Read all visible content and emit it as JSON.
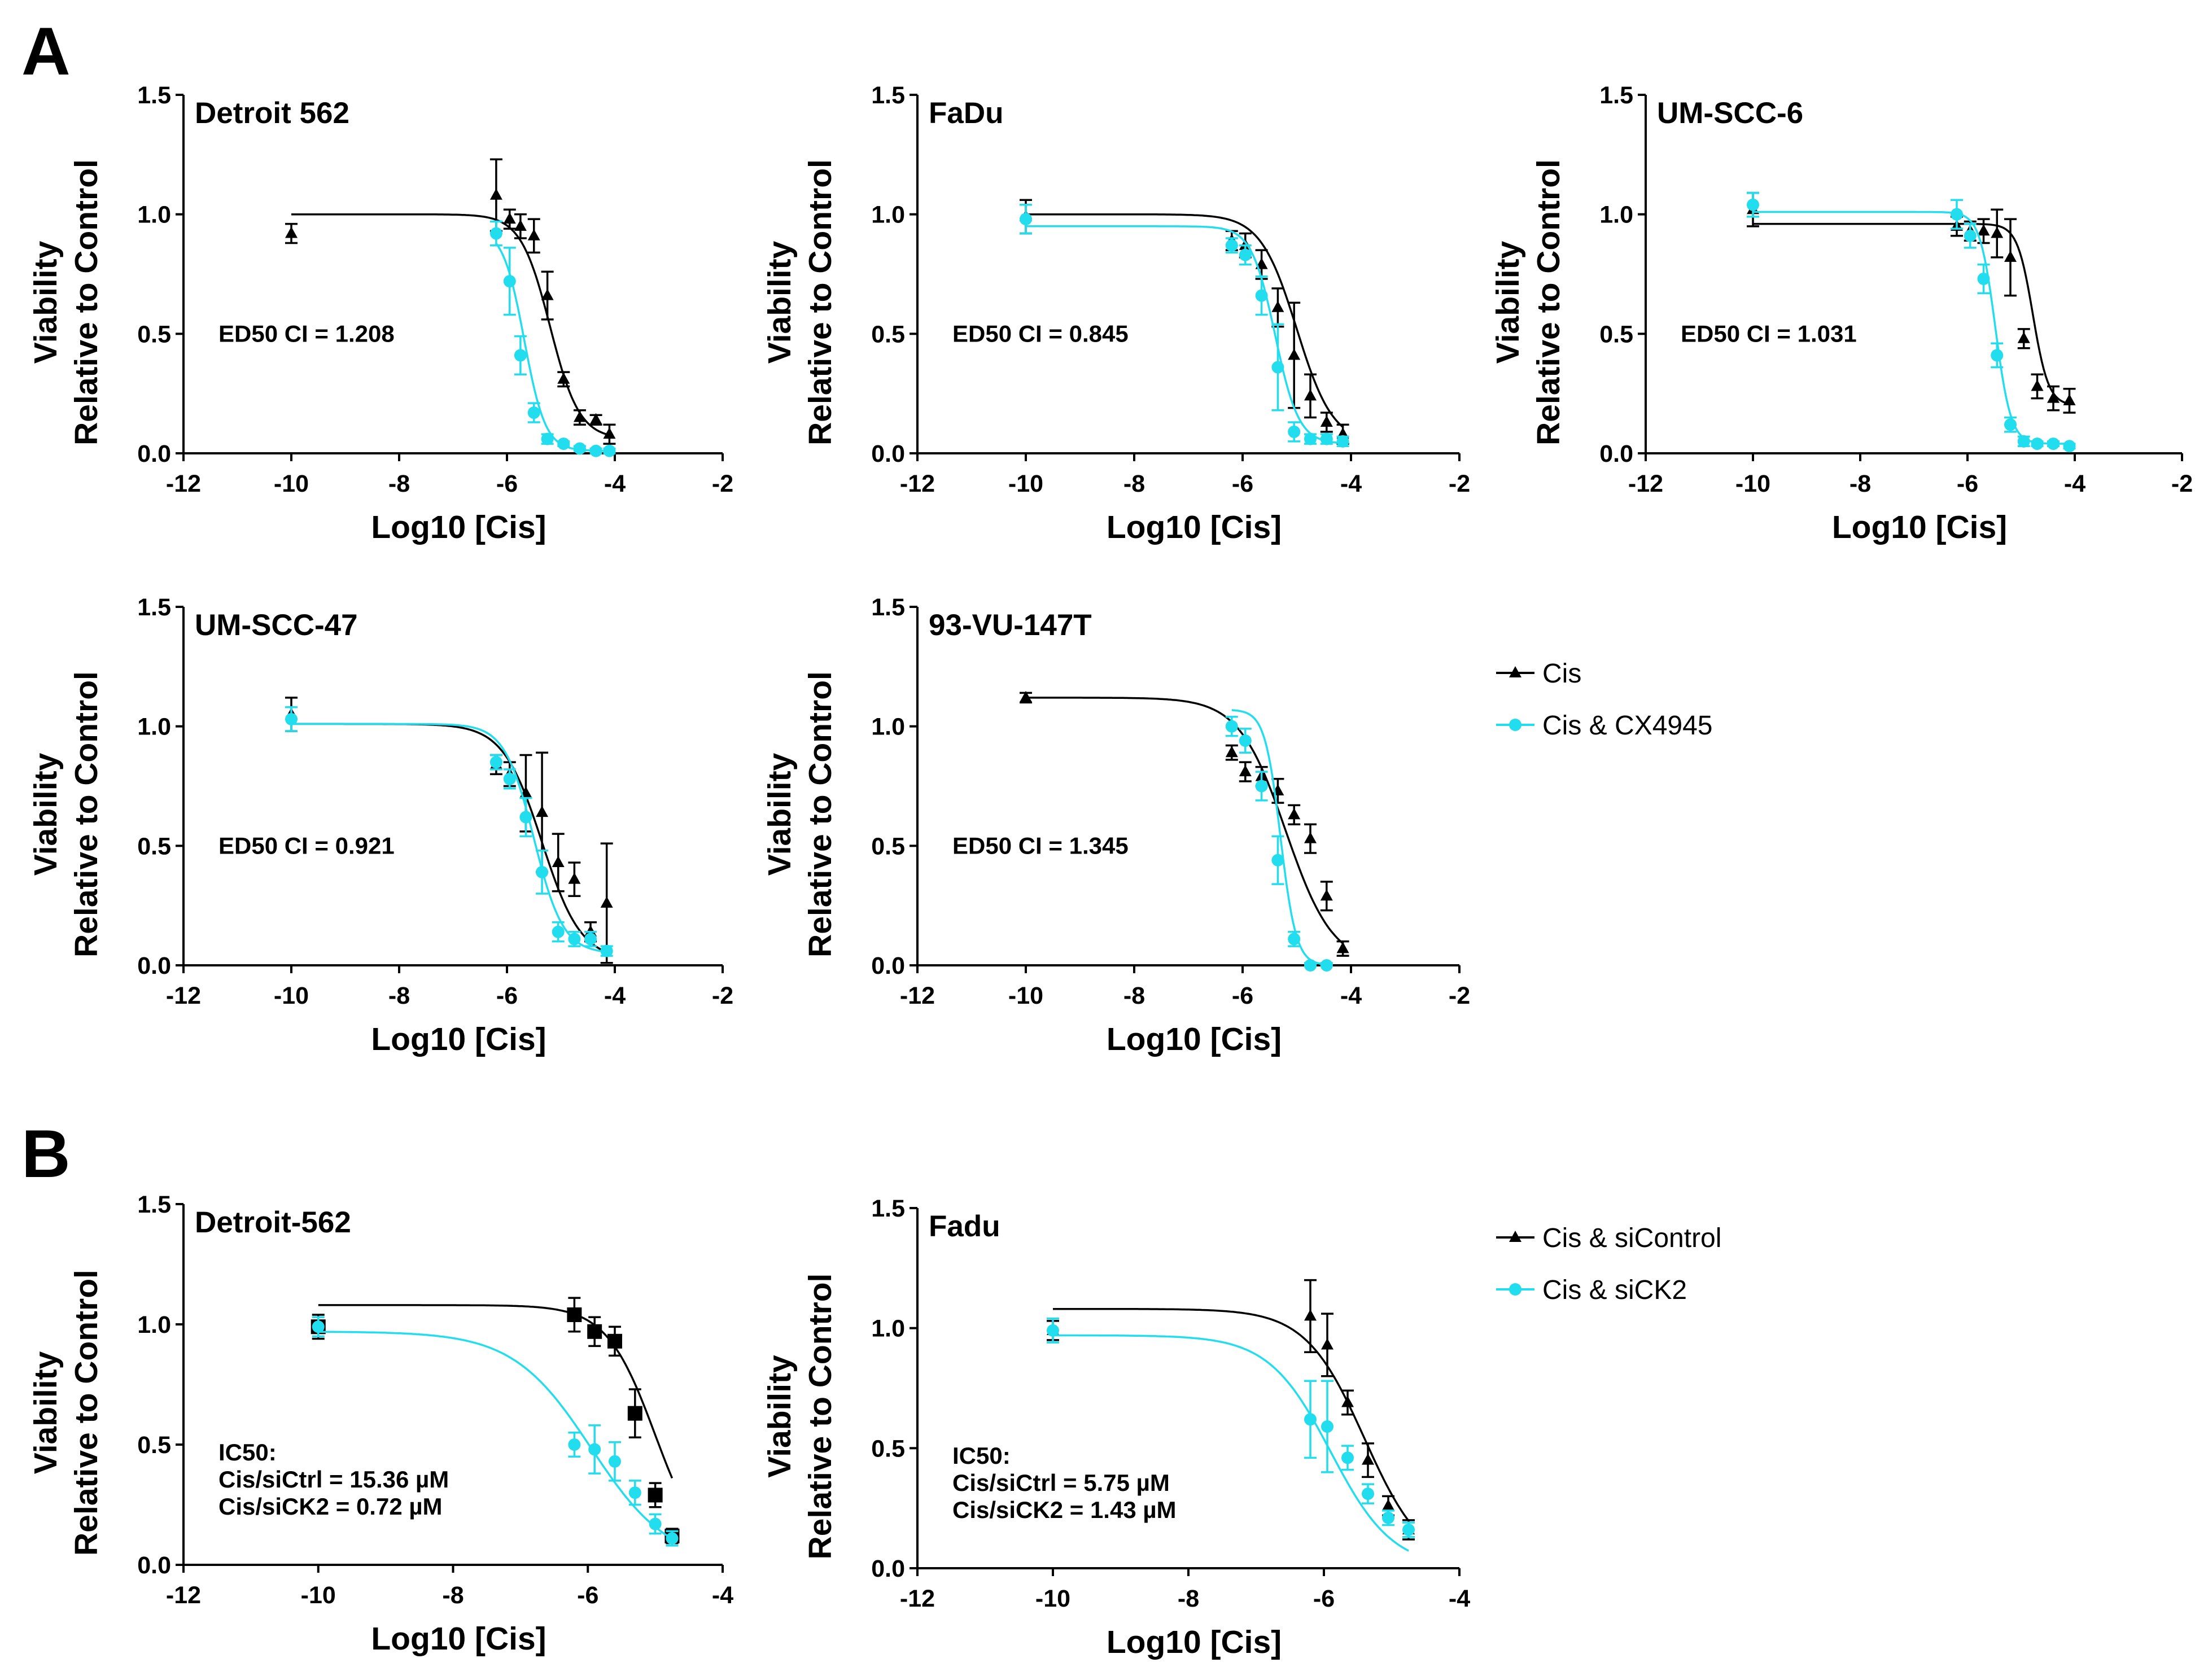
{
  "panel_letters": [
    "A",
    "B"
  ],
  "colors": {
    "cis": "#000000",
    "combo": "#22DDEE"
  },
  "chart_data": [
    {
      "type": "line",
      "panel": "A",
      "title": "Detroit 562",
      "xlabel": "Log10 [Cis]",
      "ylabel": [
        "Viability",
        "Relative to Control"
      ],
      "xlim": [
        -12,
        -2
      ],
      "ylim": [
        0,
        1.5
      ],
      "xticks": [
        -12,
        -10,
        -8,
        -6,
        -4,
        -2
      ],
      "yticks": [
        0.0,
        0.5,
        1.0,
        1.5
      ],
      "annotation": [
        "ED50 CI = 1.208"
      ],
      "series": [
        {
          "name": "Cis",
          "marker": "triangle",
          "color": "#000000",
          "fit": {
            "top": 1.0,
            "bottom": 0.06,
            "logec50": -5.2,
            "hill": 1.6
          },
          "x": [
            -10,
            -6.2,
            -5.95,
            -5.75,
            -5.5,
            -5.25,
            -4.95,
            -4.65,
            -4.35,
            -4.1
          ],
          "y": [
            0.92,
            1.08,
            0.98,
            0.95,
            0.91,
            0.66,
            0.31,
            0.15,
            0.14,
            0.08
          ],
          "err": [
            0.04,
            0.15,
            0.04,
            0.05,
            0.07,
            0.1,
            0.03,
            0.03,
            0.02,
            0.04
          ]
        },
        {
          "name": "Cis & CX4945",
          "marker": "circle",
          "color": "#22DDEE",
          "fit": {
            "top": 0.94,
            "bottom": 0.01,
            "logec50": -5.68,
            "hill": 2.2
          },
          "x": [
            -6.2,
            -5.95,
            -5.75,
            -5.5,
            -5.25,
            -4.95,
            -4.65,
            -4.35,
            -4.1
          ],
          "y": [
            0.92,
            0.72,
            0.41,
            0.17,
            0.06,
            0.04,
            0.02,
            0.01,
            0.01
          ],
          "err": [
            0.05,
            0.14,
            0.08,
            0.04,
            0.02,
            0.01,
            0.01,
            0.01,
            0.01
          ]
        }
      ]
    },
    {
      "type": "line",
      "panel": "A",
      "title": "FaDu",
      "xlabel": "Log10 [Cis]",
      "ylabel": [
        "Viability",
        "Relative to Control"
      ],
      "xlim": [
        -12,
        -2
      ],
      "ylim": [
        0,
        1.5
      ],
      "xticks": [
        -12,
        -10,
        -8,
        -6,
        -4,
        -2
      ],
      "yticks": [
        0.0,
        0.5,
        1.0,
        1.5
      ],
      "annotation": [
        "ED50 CI = 0.845"
      ],
      "series": [
        {
          "name": "Cis",
          "marker": "triangle",
          "color": "#000000",
          "fit": {
            "top": 1.0,
            "bottom": 0.04,
            "logec50": -5.0,
            "hill": 1.3
          },
          "x": [
            -10,
            -6.2,
            -5.95,
            -5.65,
            -5.35,
            -5.05,
            -4.75,
            -4.45,
            -4.15
          ],
          "y": [
            0.99,
            0.89,
            0.87,
            0.79,
            0.61,
            0.41,
            0.24,
            0.13,
            0.08
          ],
          "err": [
            0.07,
            0.04,
            0.05,
            0.06,
            0.08,
            0.22,
            0.09,
            0.04,
            0.04
          ]
        },
        {
          "name": "Cis & CX4945",
          "marker": "circle",
          "color": "#22DDEE",
          "fit": {
            "top": 0.95,
            "bottom": 0.04,
            "logec50": -5.4,
            "hill": 2.0
          },
          "x": [
            -10,
            -6.2,
            -5.95,
            -5.65,
            -5.35,
            -5.05,
            -4.75,
            -4.45,
            -4.15
          ],
          "y": [
            0.98,
            0.87,
            0.83,
            0.66,
            0.36,
            0.09,
            0.06,
            0.06,
            0.05
          ],
          "err": [
            0.06,
            0.03,
            0.04,
            0.08,
            0.18,
            0.04,
            0.02,
            0.02,
            0.02
          ]
        }
      ]
    },
    {
      "type": "line",
      "panel": "A",
      "title": "UM-SCC-6",
      "xlabel": "Log10 [Cis]",
      "ylabel": [
        "Viability",
        "Relative to Control"
      ],
      "xlim": [
        -12,
        -2
      ],
      "ylim": [
        0,
        1.5
      ],
      "xticks": [
        -12,
        -10,
        -8,
        -6,
        -4,
        -2
      ],
      "yticks": [
        0.0,
        0.5,
        1.0,
        1.5
      ],
      "annotation": [
        "ED50 CI = 1.031"
      ],
      "series": [
        {
          "name": "Cis",
          "marker": "triangle",
          "color": "#000000",
          "fit": {
            "top": 0.96,
            "bottom": 0.2,
            "logec50": -4.78,
            "hill": 3.0
          },
          "x": [
            -10,
            -6.2,
            -5.95,
            -5.7,
            -5.45,
            -5.2,
            -4.95,
            -4.7,
            -4.4,
            -4.1
          ],
          "y": [
            1.02,
            0.95,
            0.93,
            0.93,
            0.92,
            0.82,
            0.48,
            0.28,
            0.23,
            0.22
          ],
          "err": [
            0.07,
            0.04,
            0.04,
            0.05,
            0.1,
            0.16,
            0.04,
            0.05,
            0.05,
            0.05
          ]
        },
        {
          "name": "Cis & CX4945",
          "marker": "circle",
          "color": "#22DDEE",
          "fit": {
            "top": 1.01,
            "bottom": 0.04,
            "logec50": -5.48,
            "hill": 3.0
          },
          "x": [
            -10,
            -6.2,
            -5.95,
            -5.7,
            -5.45,
            -5.2,
            -4.95,
            -4.7,
            -4.4,
            -4.1
          ],
          "y": [
            1.04,
            1.0,
            0.91,
            0.73,
            0.41,
            0.12,
            0.05,
            0.04,
            0.04,
            0.03
          ],
          "err": [
            0.05,
            0.06,
            0.05,
            0.06,
            0.05,
            0.03,
            0.02,
            0.01,
            0.01,
            0.01
          ]
        }
      ]
    },
    {
      "type": "line",
      "panel": "A",
      "title": "UM-SCC-47",
      "xlabel": "Log10 [Cis]",
      "ylabel": [
        "Viability",
        "Relative to Control"
      ],
      "xlim": [
        -12,
        -2
      ],
      "ylim": [
        0,
        1.5
      ],
      "xticks": [
        -12,
        -10,
        -8,
        -6,
        -4,
        -2
      ],
      "yticks": [
        0.0,
        0.5,
        1.0,
        1.5
      ],
      "annotation": [
        "ED50 CI = 0.921"
      ],
      "series": [
        {
          "name": "Cis",
          "marker": "triangle",
          "color": "#000000",
          "fit": {
            "top": 1.01,
            "bottom": 0.02,
            "logec50": -5.35,
            "hill": 1.2
          },
          "x": [
            -10,
            -6.2,
            -5.95,
            -5.65,
            -5.35,
            -5.05,
            -4.75,
            -4.45,
            -4.15
          ],
          "y": [
            1.05,
            0.84,
            0.8,
            0.72,
            0.64,
            0.43,
            0.36,
            0.14,
            0.26
          ],
          "err": [
            0.07,
            0.04,
            0.05,
            0.16,
            0.25,
            0.12,
            0.07,
            0.04,
            0.25
          ]
        },
        {
          "name": "Cis & CX4945",
          "marker": "circle",
          "color": "#22DDEE",
          "fit": {
            "top": 1.01,
            "bottom": 0.05,
            "logec50": -5.5,
            "hill": 1.6
          },
          "x": [
            -10,
            -6.2,
            -5.95,
            -5.65,
            -5.35,
            -5.05,
            -4.75,
            -4.45,
            -4.15
          ],
          "y": [
            1.03,
            0.85,
            0.78,
            0.62,
            0.39,
            0.14,
            0.11,
            0.11,
            0.06
          ],
          "err": [
            0.05,
            0.03,
            0.04,
            0.08,
            0.09,
            0.04,
            0.03,
            0.03,
            0.02
          ]
        }
      ]
    },
    {
      "type": "line",
      "panel": "A",
      "title": "93-VU-147T",
      "xlabel": "Log10 [Cis]",
      "ylabel": [
        "Viability",
        "Relative to Control"
      ],
      "xlim": [
        -12,
        -2
      ],
      "ylim": [
        0,
        1.5
      ],
      "xticks": [
        -12,
        -10,
        -8,
        -6,
        -4,
        -2
      ],
      "yticks": [
        0.0,
        0.5,
        1.0,
        1.5
      ],
      "annotation": [
        "ED50 CI = 1.345"
      ],
      "series": [
        {
          "name": "Cis",
          "marker": "triangle",
          "color": "#000000",
          "fit": {
            "top": 1.12,
            "bottom": 0.0,
            "logec50": -5.2,
            "hill": 1.0
          },
          "x": [
            -10,
            -6.2,
            -5.95,
            -5.65,
            -5.35,
            -5.05,
            -4.75,
            -4.45,
            -4.15
          ],
          "y": [
            1.12,
            0.89,
            0.81,
            0.79,
            0.73,
            0.63,
            0.53,
            0.29,
            0.07
          ],
          "err": [
            0.02,
            0.03,
            0.04,
            0.04,
            0.05,
            0.04,
            0.06,
            0.06,
            0.03
          ]
        },
        {
          "name": "Cis & CX4945",
          "marker": "circle",
          "color": "#22DDEE",
          "fit": {
            "top": 1.07,
            "bottom": 0.0,
            "logec50": -5.3,
            "hill": 3.0
          },
          "x": [
            -6.2,
            -5.95,
            -5.65,
            -5.35,
            -5.05,
            -4.75,
            -4.45
          ],
          "y": [
            1.0,
            0.94,
            0.75,
            0.44,
            0.11,
            0.0,
            0.0
          ],
          "err": [
            0.04,
            0.05,
            0.06,
            0.1,
            0.03,
            0.01,
            0.01
          ]
        }
      ]
    },
    {
      "type": "line",
      "panel": "B",
      "title": "Detroit-562",
      "xlabel": "Log10 [Cis]",
      "ylabel": [
        "Viability",
        "Relative to Control"
      ],
      "xlim": [
        -12,
        -4
      ],
      "ylim": [
        0,
        1.5
      ],
      "xticks": [
        -12,
        -10,
        -8,
        -6,
        -4
      ],
      "yticks": [
        0.0,
        0.5,
        1.0,
        1.5
      ],
      "annotation": [
        "IC50:",
        "Cis/siCtrl = 15.36 µM",
        "Cis/siCK2 =  0.72 µM"
      ],
      "series": [
        {
          "name": "Cis & siControl",
          "marker": "square",
          "color": "#000000",
          "fit": {
            "top": 1.08,
            "bottom": 0.0,
            "logec50": -5.0,
            "hill": 1.2
          },
          "x": [
            -10,
            -6.2,
            -5.9,
            -5.6,
            -5.3,
            -5.0,
            -4.75
          ],
          "y": [
            0.99,
            1.04,
            0.97,
            0.93,
            0.63,
            0.29,
            0.12
          ],
          "err": [
            0.05,
            0.07,
            0.06,
            0.06,
            0.1,
            0.05,
            0.03
          ]
        },
        {
          "name": "Cis & siCK2",
          "marker": "circle",
          "color": "#22DDEE",
          "fit": {
            "top": 0.97,
            "bottom": 0.0,
            "logec50": -5.95,
            "hill": 0.75
          },
          "x": [
            -10,
            -6.2,
            -5.9,
            -5.6,
            -5.3,
            -5.0,
            -4.75
          ],
          "y": [
            0.99,
            0.5,
            0.48,
            0.43,
            0.3,
            0.17,
            0.11
          ],
          "err": [
            0.04,
            0.05,
            0.1,
            0.08,
            0.05,
            0.04,
            0.03
          ]
        }
      ]
    },
    {
      "type": "line",
      "panel": "B",
      "title": "Fadu",
      "xlabel": "Log10 [Cis]",
      "ylabel": [
        "Viability",
        "Relative to Control"
      ],
      "xlim": [
        -12,
        -4
      ],
      "ylim": [
        0,
        1.5
      ],
      "xticks": [
        -12,
        -10,
        -8,
        -6,
        -4
      ],
      "yticks": [
        0.0,
        0.5,
        1.0,
        1.5
      ],
      "annotation": [
        "IC50:",
        "Cis/siCtrl =  5.75 µM",
        "Cis/siCK2 = 1.43 µM"
      ],
      "series": [
        {
          "name": "Cis & siControl",
          "marker": "triangle",
          "color": "#000000",
          "fit": {
            "top": 1.08,
            "bottom": 0.0,
            "logec50": -5.4,
            "hill": 1.0
          },
          "x": [
            -10,
            -6.2,
            -5.95,
            -5.65,
            -5.35,
            -5.05,
            -4.75
          ],
          "y": [
            0.99,
            1.05,
            0.93,
            0.69,
            0.45,
            0.26,
            0.16
          ],
          "err": [
            0.04,
            0.15,
            0.13,
            0.05,
            0.07,
            0.04,
            0.04
          ]
        },
        {
          "name": "Cis & siCK2",
          "marker": "circle",
          "color": "#22DDEE",
          "fit": {
            "top": 0.97,
            "bottom": 0.0,
            "logec50": -5.9,
            "hill": 0.95
          },
          "x": [
            -10,
            -6.2,
            -5.95,
            -5.65,
            -5.35,
            -5.05,
            -4.75
          ],
          "y": [
            0.99,
            0.62,
            0.59,
            0.46,
            0.31,
            0.21,
            0.16
          ],
          "err": [
            0.05,
            0.16,
            0.19,
            0.05,
            0.04,
            0.03,
            0.03
          ]
        }
      ]
    }
  ],
  "legends": [
    {
      "panel": "A",
      "items": [
        {
          "label": "Cis",
          "marker": "triangle",
          "color": "#000000"
        },
        {
          "label": "Cis & CX4945",
          "marker": "circle",
          "color": "#22DDEE"
        }
      ]
    },
    {
      "panel": "B",
      "items": [
        {
          "label": "Cis & siControl",
          "marker": "triangle",
          "color": "#000000"
        },
        {
          "label": "Cis & siCK2",
          "marker": "circle",
          "color": "#22DDEE"
        }
      ]
    }
  ]
}
